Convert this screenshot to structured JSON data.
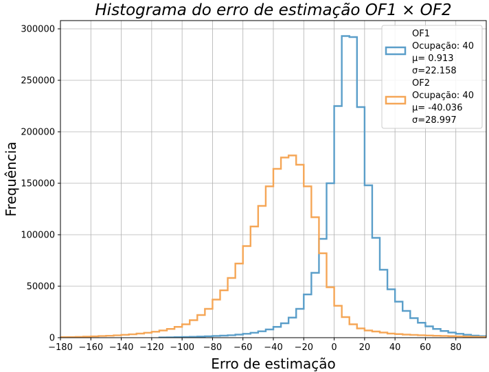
{
  "chart_data": {
    "type": "histogram",
    "title": "Histograma do erro de estimação OF1 × OF2",
    "xlabel": "Erro de estimação",
    "ylabel": "Frequência",
    "xlim": [
      -180,
      100
    ],
    "ylim": [
      0,
      308000
    ],
    "x_ticks": [
      "−180",
      "−160",
      "−140",
      "−120",
      "−100",
      "−80",
      "−60",
      "−40",
      "−20",
      "0",
      "20",
      "40",
      "60",
      "80"
    ],
    "y_ticks": [
      "0",
      "50000",
      "100000",
      "150000",
      "200000",
      "250000",
      "300000"
    ],
    "grid": true,
    "legend_position": "top-right",
    "bin_width": 5,
    "series": [
      {
        "name": "OF1",
        "legend_lines": [
          "OF1",
          "Ocupação: 40",
          "μ= 0.913",
          "σ=22.158"
        ],
        "color": "#5a9ec9",
        "bin_starts": [
          -115,
          -110,
          -105,
          -100,
          -95,
          -90,
          -85,
          -80,
          -75,
          -70,
          -65,
          -60,
          -55,
          -50,
          -45,
          -40,
          -35,
          -30,
          -25,
          -20,
          -15,
          -10,
          -5,
          0,
          5,
          10,
          15,
          20,
          25,
          30,
          35,
          40,
          45,
          50,
          55,
          60,
          65,
          70,
          75,
          80,
          85,
          90,
          95
        ],
        "values": [
          300,
          400,
          500,
          700,
          900,
          1100,
          1400,
          1700,
          2000,
          2400,
          3000,
          3800,
          4800,
          6200,
          8000,
          10500,
          14000,
          19500,
          28000,
          42000,
          63000,
          96000,
          150000,
          225000,
          293000,
          292000,
          224000,
          148000,
          97000,
          66000,
          47000,
          35000,
          26000,
          19000,
          14500,
          11000,
          8500,
          6500,
          5000,
          3800,
          2900,
          2000,
          1500
        ]
      },
      {
        "name": "OF2",
        "legend_lines": [
          "OF2",
          "Ocupação: 40",
          "μ= -40.036",
          "σ=28.997"
        ],
        "color": "#f5a656",
        "bin_starts": [
          -180,
          -175,
          -170,
          -165,
          -160,
          -155,
          -150,
          -145,
          -140,
          -135,
          -130,
          -125,
          -120,
          -115,
          -110,
          -105,
          -100,
          -95,
          -90,
          -85,
          -80,
          -75,
          -70,
          -65,
          -60,
          -55,
          -50,
          -45,
          -40,
          -35,
          -30,
          -25,
          -20,
          -15,
          -10,
          -5,
          0,
          5,
          10,
          15,
          20,
          25,
          30,
          35,
          40,
          45,
          50,
          55,
          60,
          65,
          70,
          75,
          80,
          85,
          90,
          95
        ],
        "values": [
          500,
          600,
          800,
          1000,
          1300,
          1600,
          1900,
          2300,
          2800,
          3300,
          4000,
          4800,
          5800,
          7000,
          8500,
          10500,
          13000,
          17000,
          22000,
          28000,
          37000,
          46000,
          58000,
          72000,
          89000,
          108000,
          128000,
          147000,
          164000,
          175000,
          177000,
          168000,
          147000,
          117000,
          82000,
          49000,
          31000,
          20000,
          13000,
          9000,
          7000,
          6000,
          5000,
          4000,
          3500,
          3000,
          2700,
          2400,
          2100,
          1900,
          1700,
          1500,
          1300,
          1100,
          900,
          700
        ]
      }
    ]
  }
}
